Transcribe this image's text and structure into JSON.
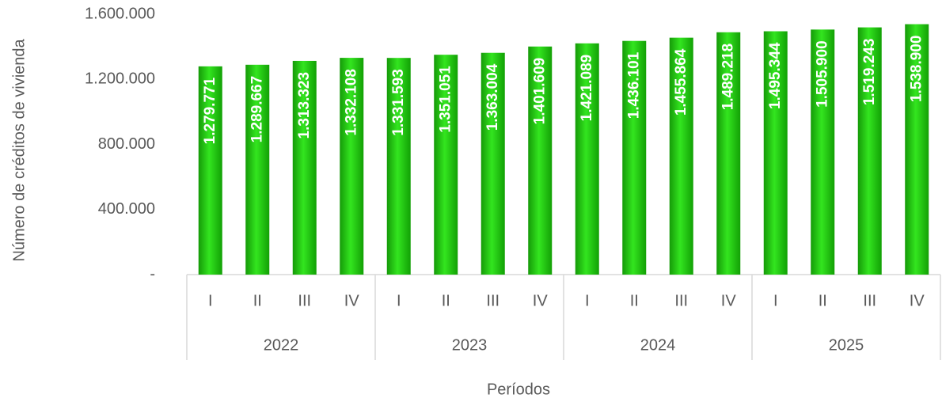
{
  "chart_data": {
    "type": "bar",
    "y_axis_label": "Número de créditos de vivienda",
    "x_axis_label": "Períodos",
    "categories": [
      "I",
      "II",
      "III",
      "IV",
      "I",
      "II",
      "III",
      "IV",
      "I",
      "II",
      "III",
      "IV",
      "I",
      "II",
      "III",
      "IV"
    ],
    "groups": [
      "2022",
      "2023",
      "2024",
      "2025"
    ],
    "values": [
      1279771,
      1289667,
      1313323,
      1332108,
      1331593,
      1351051,
      1363004,
      1401609,
      1421089,
      1436101,
      1455864,
      1489218,
      1495344,
      1505900,
      1519243,
      1538900
    ],
    "value_labels": [
      "1.279.771",
      "1.289.667",
      "1.313.323",
      "1.332.108",
      "1.331.593",
      "1.351.051",
      "1.363.004",
      "1.401.609",
      "1.421.089",
      "1.436.101",
      "1.455.864",
      "1.489.218",
      "1.495.344",
      "1.505.900",
      "1.519.243",
      "1.538.900"
    ],
    "color": "#22cc11",
    "ylim": [
      0,
      1600000
    ],
    "yticks": [
      {
        "value": 0,
        "label": "-"
      },
      {
        "value": 400000,
        "label": "400.000"
      },
      {
        "value": 800000,
        "label": "800.000"
      },
      {
        "value": 1200000,
        "label": "1.200.000"
      },
      {
        "value": 1600000,
        "label": "1.600.000"
      }
    ],
    "grid": false
  }
}
